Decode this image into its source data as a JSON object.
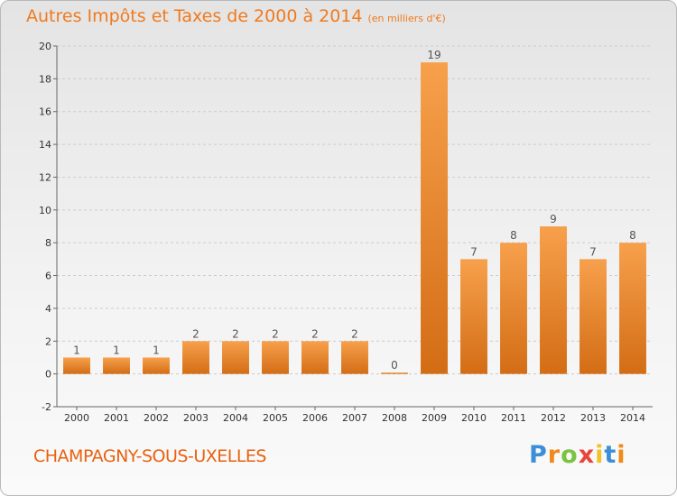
{
  "header": {
    "title": "Autres Impôts et Taxes de 2000 à 2014",
    "unit": "(en milliers d'€)"
  },
  "footer": {
    "commune": "CHAMPAGNY-SOUS-UXELLES",
    "logo": "Proxiti",
    "logo_colors": [
      "#3a8fd8",
      "#f08a1a",
      "#7cc243",
      "#e8463c",
      "#f2c12e",
      "#3a8fd8",
      "#f08a1a"
    ]
  },
  "colors": {
    "bar_top": "#f7a04c",
    "bar_bottom": "#d36d15",
    "title": "#f07a1e",
    "grid": "#cccccc"
  },
  "chart_data": {
    "type": "bar",
    "title": "Autres Impôts et Taxes de 2000 à 2014",
    "subtitle": "(en milliers d'€)",
    "xlabel": "",
    "ylabel": "",
    "ylim": [
      -2,
      20
    ],
    "yticks": [
      -2,
      0,
      2,
      4,
      6,
      8,
      10,
      12,
      14,
      16,
      18,
      20
    ],
    "grid": "horizontal",
    "categories": [
      "2000",
      "2001",
      "2002",
      "2003",
      "2004",
      "2005",
      "2006",
      "2007",
      "2008",
      "2009",
      "2010",
      "2011",
      "2012",
      "2013",
      "2014"
    ],
    "values": [
      1,
      1,
      1,
      2,
      2,
      2,
      2,
      2,
      0,
      19,
      7,
      8,
      9,
      7,
      8
    ],
    "data_labels": [
      "1",
      "1",
      "1",
      "2",
      "2",
      "2",
      "2",
      "2",
      "0",
      "19",
      "7",
      "8",
      "9",
      "7",
      "8"
    ]
  }
}
